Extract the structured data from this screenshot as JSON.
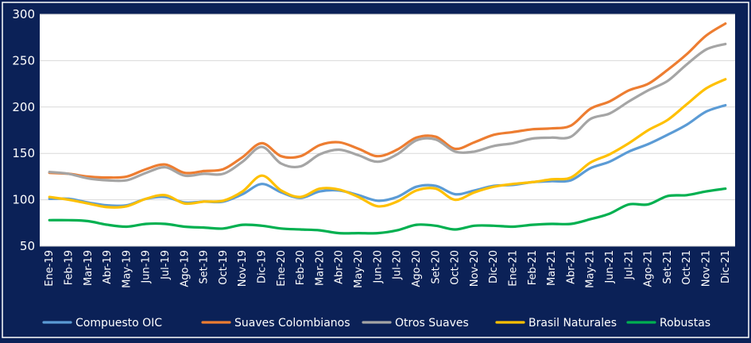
{
  "chart_data": {
    "type": "line",
    "title": "",
    "xlabel": "",
    "ylabel": "",
    "ylim": [
      50,
      300
    ],
    "yticks": [
      50,
      100,
      150,
      200,
      250,
      300
    ],
    "grid": "horizontal",
    "legend_position": "bottom",
    "categories": [
      "Ene-19",
      "Feb-19",
      "Mar-19",
      "Abr-19",
      "May-19",
      "Jun-19",
      "Jul-19",
      "Ago-19",
      "Set-19",
      "Oct-19",
      "Nov-19",
      "Dic-19",
      "Ene-20",
      "Feb-20",
      "Mar-20",
      "Abr-20",
      "May-20",
      "Jun-20",
      "Jul-20",
      "Ago-20",
      "Set-20",
      "Oct-20",
      "Nov-20",
      "Dic-20",
      "Ene-21",
      "Feb-21",
      "Mar-21",
      "Abr-21",
      "May-21",
      "Jun-21",
      "Jul-21",
      "Ago-21",
      "Set-21",
      "Oct-21",
      "Nov-21",
      "Dic-21"
    ],
    "series": [
      {
        "name": "Compuesto OIC",
        "color": "#5b9bd5",
        "values": [
          101,
          101,
          97,
          94,
          94,
          101,
          103,
          97,
          98,
          98,
          106,
          117,
          108,
          102,
          109,
          110,
          105,
          99,
          103,
          114,
          115,
          106,
          110,
          115,
          116,
          119,
          120,
          121,
          134,
          141,
          152,
          160,
          170,
          181,
          195,
          202
        ]
      },
      {
        "name": "Suaves Colombianos",
        "color": "#ed7d31",
        "values": [
          129,
          128,
          125,
          124,
          125,
          133,
          138,
          129,
          131,
          133,
          146,
          161,
          147,
          147,
          159,
          162,
          155,
          147,
          154,
          167,
          168,
          155,
          162,
          170,
          173,
          176,
          177,
          180,
          198,
          206,
          218,
          225,
          240,
          257,
          277,
          290
        ]
      },
      {
        "name": "Otros Suaves",
        "color": "#a5a5a5",
        "values": [
          130,
          128,
          123,
          121,
          121,
          129,
          135,
          126,
          128,
          128,
          141,
          157,
          139,
          136,
          149,
          154,
          148,
          141,
          149,
          164,
          165,
          152,
          152,
          158,
          161,
          166,
          167,
          168,
          187,
          193,
          206,
          218,
          228,
          246,
          262,
          268
        ]
      },
      {
        "name": "Brasil Naturales",
        "color": "#ffc000",
        "values": [
          103,
          100,
          96,
          92,
          93,
          101,
          105,
          96,
          98,
          99,
          109,
          126,
          110,
          103,
          112,
          111,
          103,
          93,
          98,
          110,
          112,
          100,
          108,
          114,
          117,
          119,
          122,
          124,
          140,
          149,
          161,
          175,
          186,
          203,
          220,
          230
        ]
      },
      {
        "name": "Robustas",
        "color": "#00b050",
        "values": [
          78,
          78,
          77,
          73,
          71,
          74,
          74,
          71,
          70,
          69,
          73,
          72,
          69,
          68,
          67,
          64,
          64,
          64,
          67,
          73,
          72,
          68,
          72,
          72,
          71,
          73,
          74,
          74,
          79,
          85,
          95,
          95,
          104,
          105,
          109,
          112
        ]
      }
    ]
  }
}
